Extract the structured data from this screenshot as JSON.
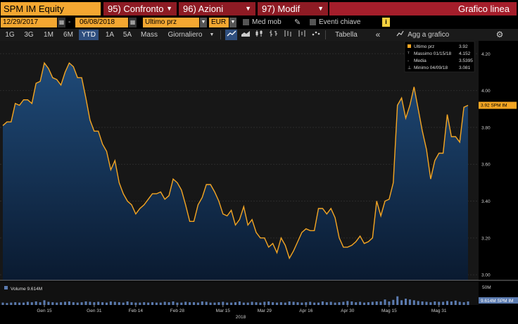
{
  "header": {
    "ticker": "SPM IM Equity",
    "buttons": [
      {
        "label": "95) Confronto"
      },
      {
        "label": "96) Azioni"
      },
      {
        "label": "97) Modif"
      }
    ],
    "title": "Grafico linea"
  },
  "controls": {
    "start_date": "12/29/2017",
    "dash": "-",
    "end_date": "06/08/2018",
    "field": "Ultimo prz",
    "currency": "EUR",
    "moving_avg_label": "Med mob",
    "key_events_label": "Eventi chiave",
    "info": "i"
  },
  "toolbar": {
    "ranges": [
      "1G",
      "3G",
      "1M",
      "6M",
      "YTD",
      "1A",
      "5A",
      "Mass"
    ],
    "active_range": "YTD",
    "period": "Giornaliero",
    "table_label": "Tabella",
    "collapse_label": "«",
    "add_label": "Agg a grafico",
    "settings_icon": "gear-icon"
  },
  "legend": {
    "rows": [
      {
        "label": "Ultimo prz",
        "value": "3.92"
      },
      {
        "label": "Massimo 01/15/18",
        "value": "4.152"
      },
      {
        "label": "Media",
        "value": "3.5395"
      },
      {
        "label": "Minimo 04/09/18",
        "value": "3.081"
      }
    ]
  },
  "price_tag": "3.92 SPM IM",
  "volume_label": "Volume 9.614M",
  "volume_tag": "9.614M SPM IM",
  "volume_axis_label": "50M",
  "year_label": "2018",
  "colors": {
    "accent_orange": "#f4a731",
    "button_red": "#8e1b24",
    "line": "#f5a623",
    "area_top": "#1f4a78",
    "area_bottom": "#0a1a30",
    "volume_bar": "#5b7bb0"
  },
  "chart_data": {
    "type": "line",
    "title": "",
    "xlabel": "",
    "ylabel": "",
    "ylim": [
      2.97,
      4.27
    ],
    "y_ticks": [
      "4.20",
      "4.00",
      "3.80",
      "3.60",
      "3.40",
      "3.20",
      "3.00"
    ],
    "x_ticks": [
      {
        "label": "Gen 15",
        "index": 10
      },
      {
        "label": "Gen 31",
        "index": 22
      },
      {
        "label": "Feb 14",
        "index": 32
      },
      {
        "label": "Feb 28",
        "index": 42
      },
      {
        "label": "Mar 15",
        "index": 53
      },
      {
        "label": "Mar 29",
        "index": 63
      },
      {
        "label": "Apr 16",
        "index": 73
      },
      {
        "label": "Apr 30",
        "index": 83
      },
      {
        "label": "Mag 15",
        "index": 93
      },
      {
        "label": "Mag 31",
        "index": 105
      }
    ],
    "series": [
      {
        "name": "Ultimo prz",
        "values": [
          3.81,
          3.83,
          3.83,
          3.93,
          3.92,
          3.95,
          3.95,
          3.93,
          4.04,
          4.05,
          4.15,
          4.12,
          4.07,
          4.06,
          4.03,
          4.1,
          4.15,
          4.13,
          4.07,
          4.07,
          3.96,
          3.84,
          3.78,
          3.78,
          3.71,
          3.67,
          3.57,
          3.62,
          3.5,
          3.44,
          3.4,
          3.38,
          3.33,
          3.36,
          3.38,
          3.41,
          3.44,
          3.44,
          3.45,
          3.41,
          3.43,
          3.52,
          3.5,
          3.46,
          3.38,
          3.29,
          3.29,
          3.38,
          3.42,
          3.49,
          3.49,
          3.45,
          3.4,
          3.33,
          3.32,
          3.35,
          3.27,
          3.3,
          3.37,
          3.27,
          3.3,
          3.23,
          3.2,
          3.2,
          3.15,
          3.17,
          3.12,
          3.2,
          3.16,
          3.09,
          3.13,
          3.18,
          3.23,
          3.25,
          3.24,
          3.24,
          3.36,
          3.36,
          3.33,
          3.36,
          3.31,
          3.2,
          3.15,
          3.15,
          3.16,
          3.18,
          3.21,
          3.17,
          3.18,
          3.2,
          3.4,
          3.32,
          3.4,
          3.41,
          3.5,
          3.92,
          3.96,
          3.85,
          3.92,
          4.02,
          3.9,
          3.78,
          3.68,
          3.52,
          3.62,
          3.66,
          3.66,
          3.87,
          3.75,
          3.75,
          3.72,
          3.91,
          3.92
        ]
      },
      {
        "name": "Volume",
        "values": [
          6,
          5,
          6,
          7,
          6,
          6,
          8,
          7,
          9,
          7,
          12,
          8,
          7,
          6,
          7,
          8,
          9,
          7,
          6,
          7,
          9,
          8,
          7,
          8,
          7,
          6,
          9,
          8,
          7,
          6,
          9,
          7,
          6,
          6,
          7,
          6,
          7,
          6,
          6,
          8,
          7,
          9,
          6,
          6,
          8,
          7,
          7,
          6,
          9,
          8,
          6,
          6,
          7,
          8,
          6,
          6,
          7,
          9,
          6,
          6,
          8,
          7,
          6,
          8,
          9,
          7,
          6,
          7,
          6,
          9,
          8,
          7,
          6,
          7,
          8,
          6,
          6,
          9,
          7,
          8,
          6,
          7,
          8,
          10,
          9,
          7,
          8,
          6,
          7,
          8,
          9,
          9,
          14,
          9,
          13,
          22,
          12,
          16,
          14,
          12,
          10,
          9,
          8,
          7,
          9,
          8,
          8,
          10,
          9,
          11,
          8,
          7,
          9
        ]
      }
    ],
    "volume_ylim": [
      0,
      50
    ]
  }
}
